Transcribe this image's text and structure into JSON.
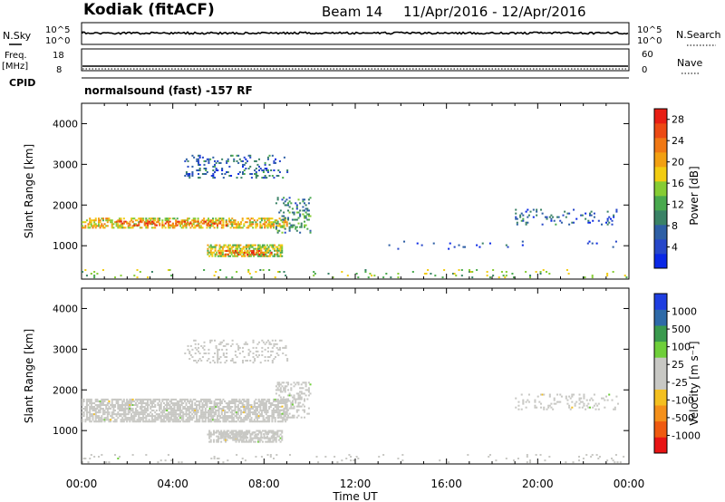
{
  "header": {
    "station": "Kodiak (fitACF)",
    "beam": "Beam 14",
    "date_range": "11/Apr/2016 - 12/Apr/2016"
  },
  "summary": {
    "nsky_label": "N.Sky",
    "nsky_ticks": [
      "10^5",
      "10^0"
    ],
    "nsearch_label": "N.Search",
    "nsearch_ticks": [
      "10^5",
      "10^0"
    ],
    "freq_label": "Freq.",
    "freq_unit": "[MHz]",
    "freq_ticks": [
      "18",
      "8"
    ],
    "nave_label": "Nave",
    "nave_ticks": [
      "60",
      "0"
    ],
    "cpid_label": "CPID",
    "cpid_text": "normalsound (fast) -157 RF"
  },
  "chart_data": [
    {
      "type": "heatmap",
      "panel": "power",
      "ylabel": "Slant Range [km]",
      "xlabel": "Time UT",
      "ylim": [
        180,
        4500
      ],
      "yticks": [
        "1000",
        "2000",
        "3000",
        "4000"
      ],
      "xticks": [
        "00:00",
        "04:00",
        "08:00",
        "12:00",
        "16:00",
        "20:00",
        "00:00"
      ],
      "colorbar": {
        "label": "Power [dB]",
        "ticks": [
          "4",
          "8",
          "12",
          "16",
          "20",
          "24",
          "28"
        ],
        "range": [
          0,
          30
        ],
        "colors": [
          "#0a28e6",
          "#2747c9",
          "#2e5fa5",
          "#3a8266",
          "#49a94e",
          "#86cc34",
          "#f2cc12",
          "#f2a012",
          "#f07814",
          "#ec4a14",
          "#e81e14"
        ]
      },
      "regions": [
        {
          "t": [
            0.0,
            9.0
          ],
          "r": [
            1420,
            1680
          ],
          "value": 18,
          "density": 0.55
        },
        {
          "t": [
            1.5,
            6.5
          ],
          "r": [
            1480,
            1600
          ],
          "value": 25,
          "density": 0.35
        },
        {
          "t": [
            5.5,
            8.8
          ],
          "r": [
            720,
            1000
          ],
          "value": 16,
          "density": 0.7
        },
        {
          "t": [
            6.0,
            8.3
          ],
          "r": [
            760,
            880
          ],
          "value": 26,
          "density": 0.4
        },
        {
          "t": [
            8.5,
            10.0
          ],
          "r": [
            1300,
            2200
          ],
          "value": 10,
          "density": 0.25
        },
        {
          "t": [
            4.5,
            9.0
          ],
          "r": [
            2650,
            3200
          ],
          "value": 7,
          "density": 0.2
        },
        {
          "t": [
            19.0,
            23.5
          ],
          "r": [
            1500,
            1900
          ],
          "value": 6,
          "density": 0.12
        },
        {
          "t": [
            13.0,
            23.5
          ],
          "r": [
            900,
            1100
          ],
          "value": 5,
          "density": 0.05
        },
        {
          "t": [
            0.0,
            24.0
          ],
          "r": [
            200,
            400
          ],
          "value": 14,
          "density": 0.06
        }
      ]
    },
    {
      "type": "heatmap",
      "panel": "velocity",
      "ylabel": "Slant Range [km]",
      "xlabel": "Time UT",
      "ylim": [
        180,
        4500
      ],
      "yticks": [
        "1000",
        "2000",
        "3000",
        "4000"
      ],
      "xticks": [
        "00:00",
        "04:00",
        "08:00",
        "12:00",
        "16:00",
        "20:00",
        "00:00"
      ],
      "colorbar": {
        "label": "Velocity [m s⁻¹]",
        "ticks": [
          "1000",
          "500",
          "100",
          "25",
          "-25",
          "-100",
          "-500",
          "-1000"
        ],
        "range": [
          -1200,
          1200
        ],
        "colors": [
          "#e81414",
          "#ef5a10",
          "#f4901a",
          "#f4c020",
          "#c8c8c4",
          "#c8c8c4",
          "#6fcf3a",
          "#3a9a4e",
          "#2e6aa8",
          "#1f3ee0"
        ]
      },
      "regions": [
        {
          "t": [
            0.0,
            9.0
          ],
          "r": [
            1200,
            1780
          ],
          "value": 0,
          "density": 0.7
        },
        {
          "t": [
            5.5,
            8.8
          ],
          "r": [
            700,
            1000
          ],
          "value": 0,
          "density": 0.6
        },
        {
          "t": [
            6.0,
            8.5
          ],
          "r": [
            800,
            980
          ],
          "value": -90,
          "density": 0.5
        },
        {
          "t": [
            8.5,
            10.0
          ],
          "r": [
            1300,
            2200
          ],
          "value": 0,
          "density": 0.3
        },
        {
          "t": [
            4.5,
            9.0
          ],
          "r": [
            2650,
            3200
          ],
          "value": 0,
          "density": 0.22
        },
        {
          "t": [
            19.0,
            23.5
          ],
          "r": [
            1500,
            1900
          ],
          "value": 0,
          "density": 0.15
        },
        {
          "t": [
            0.0,
            24.0
          ],
          "r": [
            200,
            400
          ],
          "value": 0,
          "density": 0.06
        }
      ]
    }
  ]
}
